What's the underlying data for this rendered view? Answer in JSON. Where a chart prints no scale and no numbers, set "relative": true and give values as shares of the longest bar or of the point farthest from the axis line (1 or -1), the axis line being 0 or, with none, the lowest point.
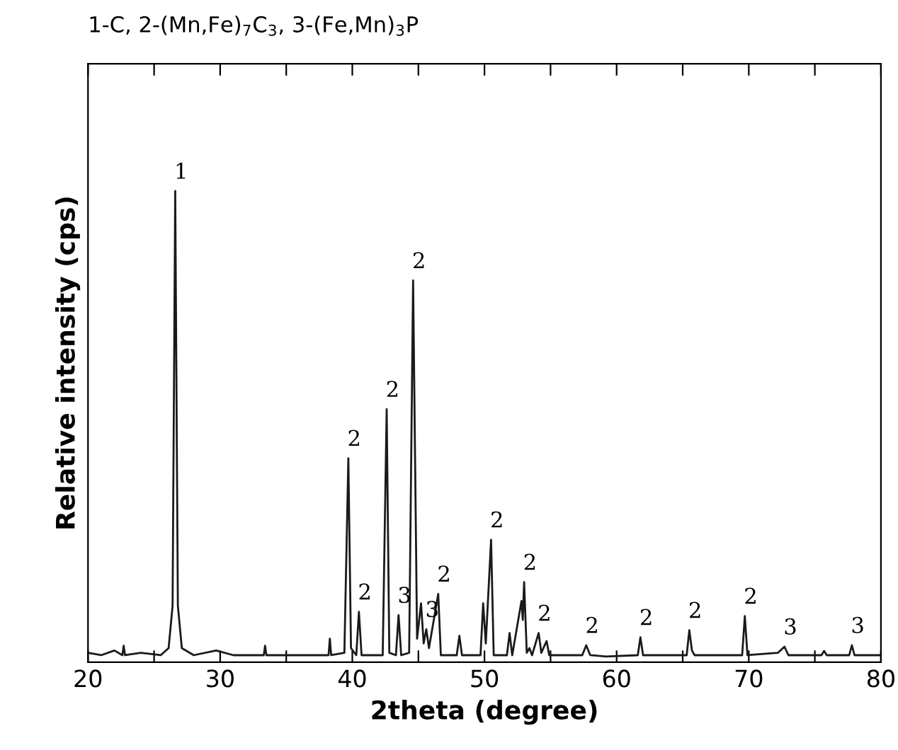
{
  "chart_data": {
    "type": "line",
    "relative": true,
    "title": "1-C, 2-(Mn,Fe)$_{7}$C$_{3}$, 3-(Fe,Mn)$_{3}$P",
    "xlabel": "2theta (degree)",
    "ylabel": "Relative intensity (cps)",
    "color": "#1a1a1a",
    "grid": false,
    "legend": false,
    "marker": "none",
    "line_style": "solid",
    "xlim": [
      20,
      80
    ],
    "xticks": [
      20,
      {
        "value": 25,
        "label": null
      },
      30,
      {
        "value": 35,
        "label": null
      },
      40,
      {
        "value": 45,
        "label": null
      },
      50,
      {
        "value": 55,
        "label": null
      },
      60,
      {
        "value": 65,
        "label": null
      },
      70,
      {
        "value": 75,
        "label": null
      },
      80
    ],
    "x": [
      20.0,
      21,
      22,
      22.6,
      22.7,
      22.8,
      24,
      25.5,
      26.1,
      26.4,
      26.6,
      26.8,
      27.1,
      28,
      29.7,
      31,
      33.3,
      33.4,
      33.5,
      36,
      38.2,
      38.3,
      38.4,
      39.4,
      39.7,
      39.9,
      40.3,
      40.5,
      40.7,
      42.3,
      42.6,
      42.8,
      43.3,
      43.5,
      43.7,
      44.3,
      44.6,
      44.9,
      45.2,
      45.4,
      45.6,
      45.8,
      46.5,
      46.7,
      47.9,
      48.1,
      48.3,
      49.7,
      49.9,
      50.1,
      50.5,
      50.7,
      51.7,
      51.9,
      52.1,
      52.8,
      52.9,
      53.0,
      53.2,
      53.4,
      53.6,
      54.1,
      54.3,
      54.7,
      54.9,
      57.4,
      57.7,
      58.0,
      59.2,
      61.6,
      61.8,
      62.0,
      65.3,
      65.5,
      65.7,
      65.9,
      69.5,
      69.7,
      69.9,
      72.2,
      72.7,
      73.0,
      75.5,
      75.7,
      75.9,
      77.6,
      77.8,
      78.0,
      78.9,
      80
    ],
    "values": [
      0.02,
      0.015,
      0.025,
      0.015,
      0.035,
      0.015,
      0.02,
      0.015,
      0.03,
      0.12,
      1.0,
      0.12,
      0.03,
      0.015,
      0.025,
      0.015,
      0.015,
      0.035,
      0.015,
      0.015,
      0.015,
      0.05,
      0.015,
      0.02,
      0.433,
      0.03,
      0.015,
      0.107,
      0.015,
      0.015,
      0.537,
      0.02,
      0.015,
      0.1,
      0.015,
      0.02,
      0.81,
      0.05,
      0.125,
      0.04,
      0.07,
      0.03,
      0.145,
      0.015,
      0.015,
      0.056,
      0.015,
      0.015,
      0.125,
      0.04,
      0.26,
      0.015,
      0.015,
      0.062,
      0.015,
      0.13,
      0.09,
      0.17,
      0.02,
      0.03,
      0.015,
      0.062,
      0.02,
      0.045,
      0.015,
      0.015,
      0.036,
      0.015,
      0.012,
      0.015,
      0.053,
      0.015,
      0.015,
      0.068,
      0.025,
      0.015,
      0.015,
      0.098,
      0.015,
      0.02,
      0.033,
      0.015,
      0.015,
      0.024,
      0.015,
      0.015,
      0.036,
      0.015,
      0.015,
      0.015
    ],
    "annotations": [
      {
        "text": "1",
        "x": 26.6,
        "y": 1.0
      },
      {
        "text": "2",
        "x": 39.7,
        "y": 0.433
      },
      {
        "text": "2",
        "x": 40.5,
        "y": 0.107
      },
      {
        "text": "2",
        "x": 42.6,
        "y": 0.537
      },
      {
        "text": "3",
        "x": 43.5,
        "y": 0.1
      },
      {
        "text": "2",
        "x": 44.6,
        "y": 0.81
      },
      {
        "text": "3",
        "x": 45.6,
        "y": 0.07
      },
      {
        "text": "2",
        "x": 46.5,
        "y": 0.145
      },
      {
        "text": "2",
        "x": 50.5,
        "y": 0.26
      },
      {
        "text": "2",
        "x": 53.0,
        "y": 0.17
      },
      {
        "text": "2",
        "x": 54.1,
        "y": 0.062
      },
      {
        "text": "2",
        "x": 57.7,
        "y": 0.036
      },
      {
        "text": "2",
        "x": 61.8,
        "y": 0.053
      },
      {
        "text": "2",
        "x": 65.5,
        "y": 0.068
      },
      {
        "text": "2",
        "x": 69.7,
        "y": 0.098
      },
      {
        "text": "3",
        "x": 72.7,
        "y": 0.033
      },
      {
        "text": "3",
        "x": 77.8,
        "y": 0.036
      }
    ]
  }
}
